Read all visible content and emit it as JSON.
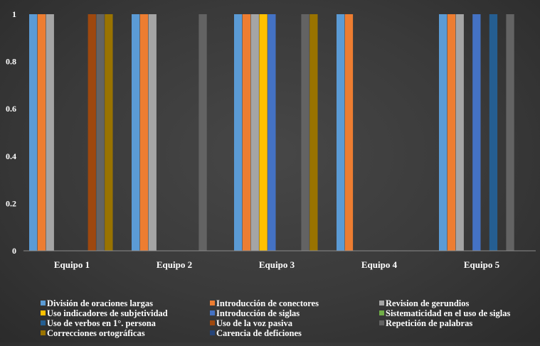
{
  "chart_data": {
    "type": "bar",
    "title": "",
    "xlabel": "",
    "ylabel": "",
    "ylim": [
      0,
      1
    ],
    "y_ticks": [
      "0",
      "0.2",
      "0.4",
      "0.6",
      "0.8",
      "1"
    ],
    "gridlines": false,
    "legend_position": "bottom",
    "categories": [
      "Equipo 1",
      "Equipo 2",
      "Equipo 3",
      "Equipo 4",
      "Equipo 5"
    ],
    "series": [
      {
        "name": "División de oraciones largas",
        "color": "#5b9bd5",
        "values": [
          1,
          1,
          1,
          1,
          1
        ]
      },
      {
        "name": "Introducción de conectores",
        "color": "#ed7d31",
        "values": [
          1,
          1,
          1,
          1,
          1
        ]
      },
      {
        "name": "Revision de gerundios",
        "color": "#a5a5a5",
        "values": [
          1,
          1,
          1,
          0,
          1
        ]
      },
      {
        "name": "Uso indicadores de subjetividad",
        "color": "#ffc000",
        "values": [
          0,
          0,
          1,
          0,
          0
        ]
      },
      {
        "name": "Introducción de siglas",
        "color": "#4472c4",
        "values": [
          0,
          0,
          1,
          0,
          1
        ]
      },
      {
        "name": "Sistematicidad en el uso de siglas",
        "color": "#70ad47",
        "values": [
          0,
          0,
          0,
          0,
          0
        ]
      },
      {
        "name": "Uso de verbos en 1°. persona",
        "color": "#255e91",
        "values": [
          0,
          0,
          0,
          0,
          1
        ]
      },
      {
        "name": "Uso de la voz pasiva",
        "color": "#9e480e",
        "values": [
          1,
          0,
          0,
          0,
          0
        ]
      },
      {
        "name": "Repetición de palabras",
        "color": "#636363",
        "values": [
          1,
          1,
          1,
          0,
          1
        ]
      },
      {
        "name": "Correcciones ortográficas",
        "color": "#997300",
        "values": [
          1,
          0,
          1,
          0,
          0
        ]
      },
      {
        "name": "Carencia de deficiones",
        "color": "#264478",
        "values": [
          0,
          0,
          0,
          0,
          0
        ]
      }
    ]
  }
}
